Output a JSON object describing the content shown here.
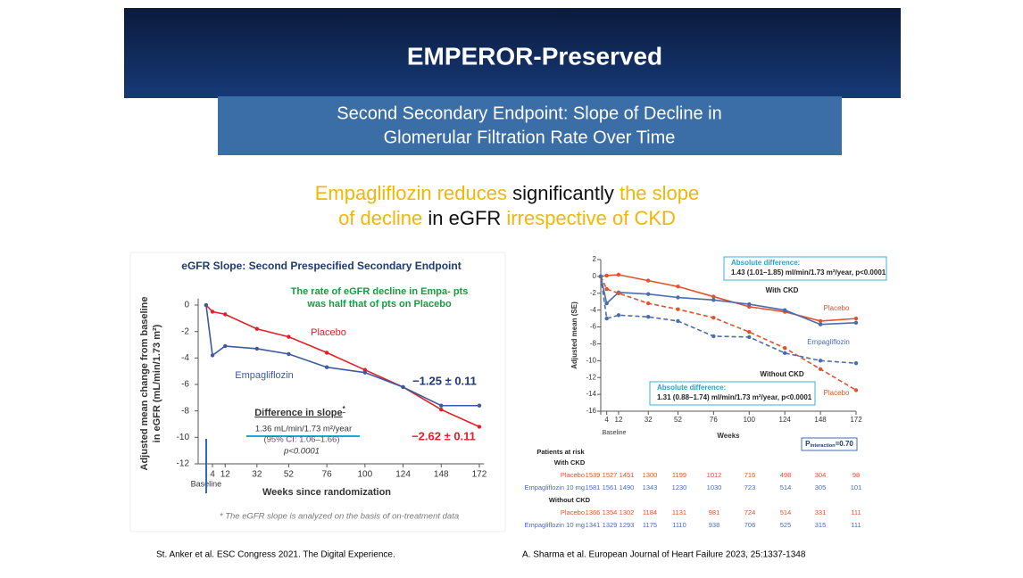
{
  "header": {
    "title": "EMPEROR-Preserved"
  },
  "subtitle": {
    "lines": [
      "Second Secondary Endpoint: Slope of Decline in",
      "Glomerular Filtration Rate Over Time"
    ]
  },
  "headline": {
    "lines": [
      [
        {
          "text": "Empagliflozin reduces",
          "highlight": true
        },
        {
          "text": "significantly",
          "highlight": false
        },
        {
          "text": "the slope",
          "highlight": true
        }
      ],
      [
        {
          "text": "of decline",
          "highlight": true
        },
        {
          "text": "in eGFR",
          "highlight": false
        },
        {
          "text": "irrespective of CKD",
          "highlight": true
        }
      ]
    ]
  },
  "chart_data": [
    {
      "type": "line",
      "title": "eGFR Slope: Second Prespecified Secondary Endpoint",
      "x": [
        0,
        4,
        12,
        32,
        52,
        76,
        100,
        124,
        148,
        172
      ],
      "xlim": [
        -5,
        175
      ],
      "xticks": [
        {
          "value": 0,
          "label": "Baseline"
        },
        4,
        12,
        32,
        52,
        76,
        100,
        124,
        148,
        172
      ],
      "ylim": [
        -12,
        0.5
      ],
      "yticks": [
        0,
        -2,
        -4,
        -6,
        -8,
        -10,
        -12
      ],
      "xlabel": "Weeks since randomization",
      "ylabel": [
        "Adjusted mean change from baseline",
        "in eGFR (mL/min/1.73 m²)"
      ],
      "series": [
        {
          "name": "Placebo",
          "color": "#e32027",
          "values": [
            0,
            -0.5,
            -0.7,
            -1.8,
            -2.4,
            -3.6,
            -4.9,
            -6.2,
            -7.9,
            -9.2
          ]
        },
        {
          "name": "Empagliflozin",
          "color": "#3d5a9e",
          "values": [
            0,
            -3.8,
            -3.1,
            -3.3,
            -3.7,
            -4.7,
            -5.1,
            -6.2,
            -7.6,
            -7.6
          ]
        }
      ],
      "note": [
        "The rate of eGFR decline in Empa- pts",
        "was half that of pts on Placebo"
      ],
      "slope_empagliflozin": "−1.25 ± 0.11",
      "slope_placebo": "−2.62 ± 0.11",
      "difference": {
        "title": "Difference in slope",
        "marker": "*",
        "value": "1.36 mL/min/1.73 m²/year",
        "ci": "(95% CI: 1.06–1.66)",
        "p": "p<0.0001"
      },
      "footnote": "* The eGFR slope is analyzed on the basis of on-treatment data"
    },
    {
      "type": "line",
      "x": [
        0,
        4,
        12,
        32,
        52,
        76,
        100,
        124,
        148,
        172
      ],
      "xlim": [
        0,
        172
      ],
      "xticks": [
        {
          "value": 0,
          "label": "Baseline"
        },
        4,
        12,
        32,
        52,
        76,
        100,
        124,
        148,
        172
      ],
      "ylim": [
        -16,
        2
      ],
      "yticks": [
        2,
        0,
        -2,
        -4,
        -6,
        -8,
        -10,
        -12,
        -14,
        -16
      ],
      "xlabel": "Weeks",
      "ylabel": [
        "Adjusted mean (SE)"
      ],
      "series": [
        {
          "name": "Placebo",
          "color": "#e0532b",
          "dash": false,
          "values": [
            0,
            0.1,
            0.2,
            -0.5,
            -1.2,
            -2.4,
            -3.6,
            -4.2,
            -5.3,
            -5.0
          ]
        },
        {
          "color": "#4a6cae",
          "dash": false,
          "values": [
            0,
            -3.2,
            -1.9,
            -2.1,
            -2.5,
            -2.8,
            -3.3,
            -4.0,
            -5.7,
            -5.5
          ]
        },
        {
          "name": "Placebo",
          "color": "#e0532b",
          "dash": true,
          "values": [
            0,
            -1.5,
            -2.0,
            -3.2,
            -3.9,
            -4.9,
            -6.6,
            -8.5,
            -11.0,
            -13.5
          ]
        },
        {
          "name": "Empagliflozin",
          "color": "#4a6cae",
          "dash": true,
          "values": [
            0,
            -5.0,
            -4.6,
            -4.8,
            -5.3,
            -7.1,
            -7.2,
            -9.1,
            -10.0,
            -10.3
          ]
        }
      ],
      "with_ckd": "With CKD",
      "without_ckd": "Without CKD",
      "abs_diff_with": {
        "heading": "Absolute difference:",
        "text": "1.43 (1.01–1.85) ml/min/1.73 m²/year, p<0.0001"
      },
      "abs_diff_without": {
        "heading": "Absolute difference:",
        "text": "1.31 (0.88–1.74) ml/min/1.73 m²/year, p<0.0001"
      },
      "interaction": {
        "symbol": "P",
        "subscript": "interaction",
        "value": "=0.70"
      },
      "at_risk": {
        "title": "Patients at risk",
        "groups": [
          {
            "name": "With CKD",
            "rows": [
              {
                "label": "Placebo",
                "color": "#e0532b",
                "counts": [
                  1539,
                  1527,
                  1451,
                  1300,
                  1199,
                  1012,
                  716,
                  498,
                  304,
                  98
                ]
              },
              {
                "label": "Empagliflozin 10 mg",
                "color": "#4a6cae",
                "counts": [
                  1581,
                  1561,
                  1490,
                  1343,
                  1230,
                  1030,
                  723,
                  514,
                  305,
                  101
                ]
              }
            ]
          },
          {
            "name": "Without CKD",
            "rows": [
              {
                "label": "Placebo",
                "color": "#e0532b",
                "counts": [
                  1366,
                  1354,
                  1302,
                  1184,
                  1131,
                  981,
                  724,
                  514,
                  331,
                  111
                ]
              },
              {
                "label": "Empagliflozin 10 mg",
                "color": "#4a6cae",
                "counts": [
                  1341,
                  1329,
                  1293,
                  1175,
                  1110,
                  938,
                  706,
                  525,
                  315,
                  111
                ]
              }
            ]
          }
        ]
      }
    }
  ],
  "citations": [
    "St. Anker et al. ESC Congress 2021. The Digital Experience.",
    "A. Sharma et al. European Journal of Heart Failure 2023, 25:1337-1348"
  ]
}
